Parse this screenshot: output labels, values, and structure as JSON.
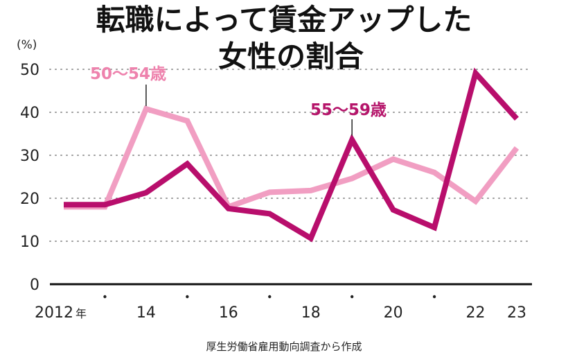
{
  "chart_data": {
    "type": "line",
    "title_line1": "転職によって賃金アップした",
    "title_line2": "女性の割合",
    "unit": "(%)",
    "x": [
      2012,
      2013,
      2014,
      2015,
      2016,
      2017,
      2018,
      2019,
      2020,
      2021,
      2022,
      2023
    ],
    "x_tick_labels": [
      {
        "x": 2012,
        "label": "2012"
      },
      {
        "x": 2014,
        "label": "14"
      },
      {
        "x": 2016,
        "label": "16"
      },
      {
        "x": 2018,
        "label": "18"
      },
      {
        "x": 2020,
        "label": "20"
      },
      {
        "x": 2022,
        "label": "22"
      },
      {
        "x": 2023,
        "label": "23"
      }
    ],
    "x_year_suffix": "年",
    "yticks": [
      0,
      10,
      20,
      30,
      40,
      50
    ],
    "ylim": [
      0,
      50
    ],
    "grid": true,
    "series": [
      {
        "name": "50〜54歳",
        "color": "#f19ec2",
        "values": [
          18.0,
          18.0,
          40.8,
          38.0,
          18.0,
          21.4,
          21.8,
          24.6,
          29.1,
          26.0,
          19.3,
          31.7
        ]
      },
      {
        "name": "55〜59歳",
        "color": "#b80e6c",
        "values": [
          18.5,
          18.5,
          21.3,
          28.0,
          17.6,
          16.4,
          10.7,
          33.6,
          17.3,
          13.2,
          49.1,
          38.5
        ]
      }
    ],
    "source": "厚生労働省雇用動向調査から作成"
  }
}
